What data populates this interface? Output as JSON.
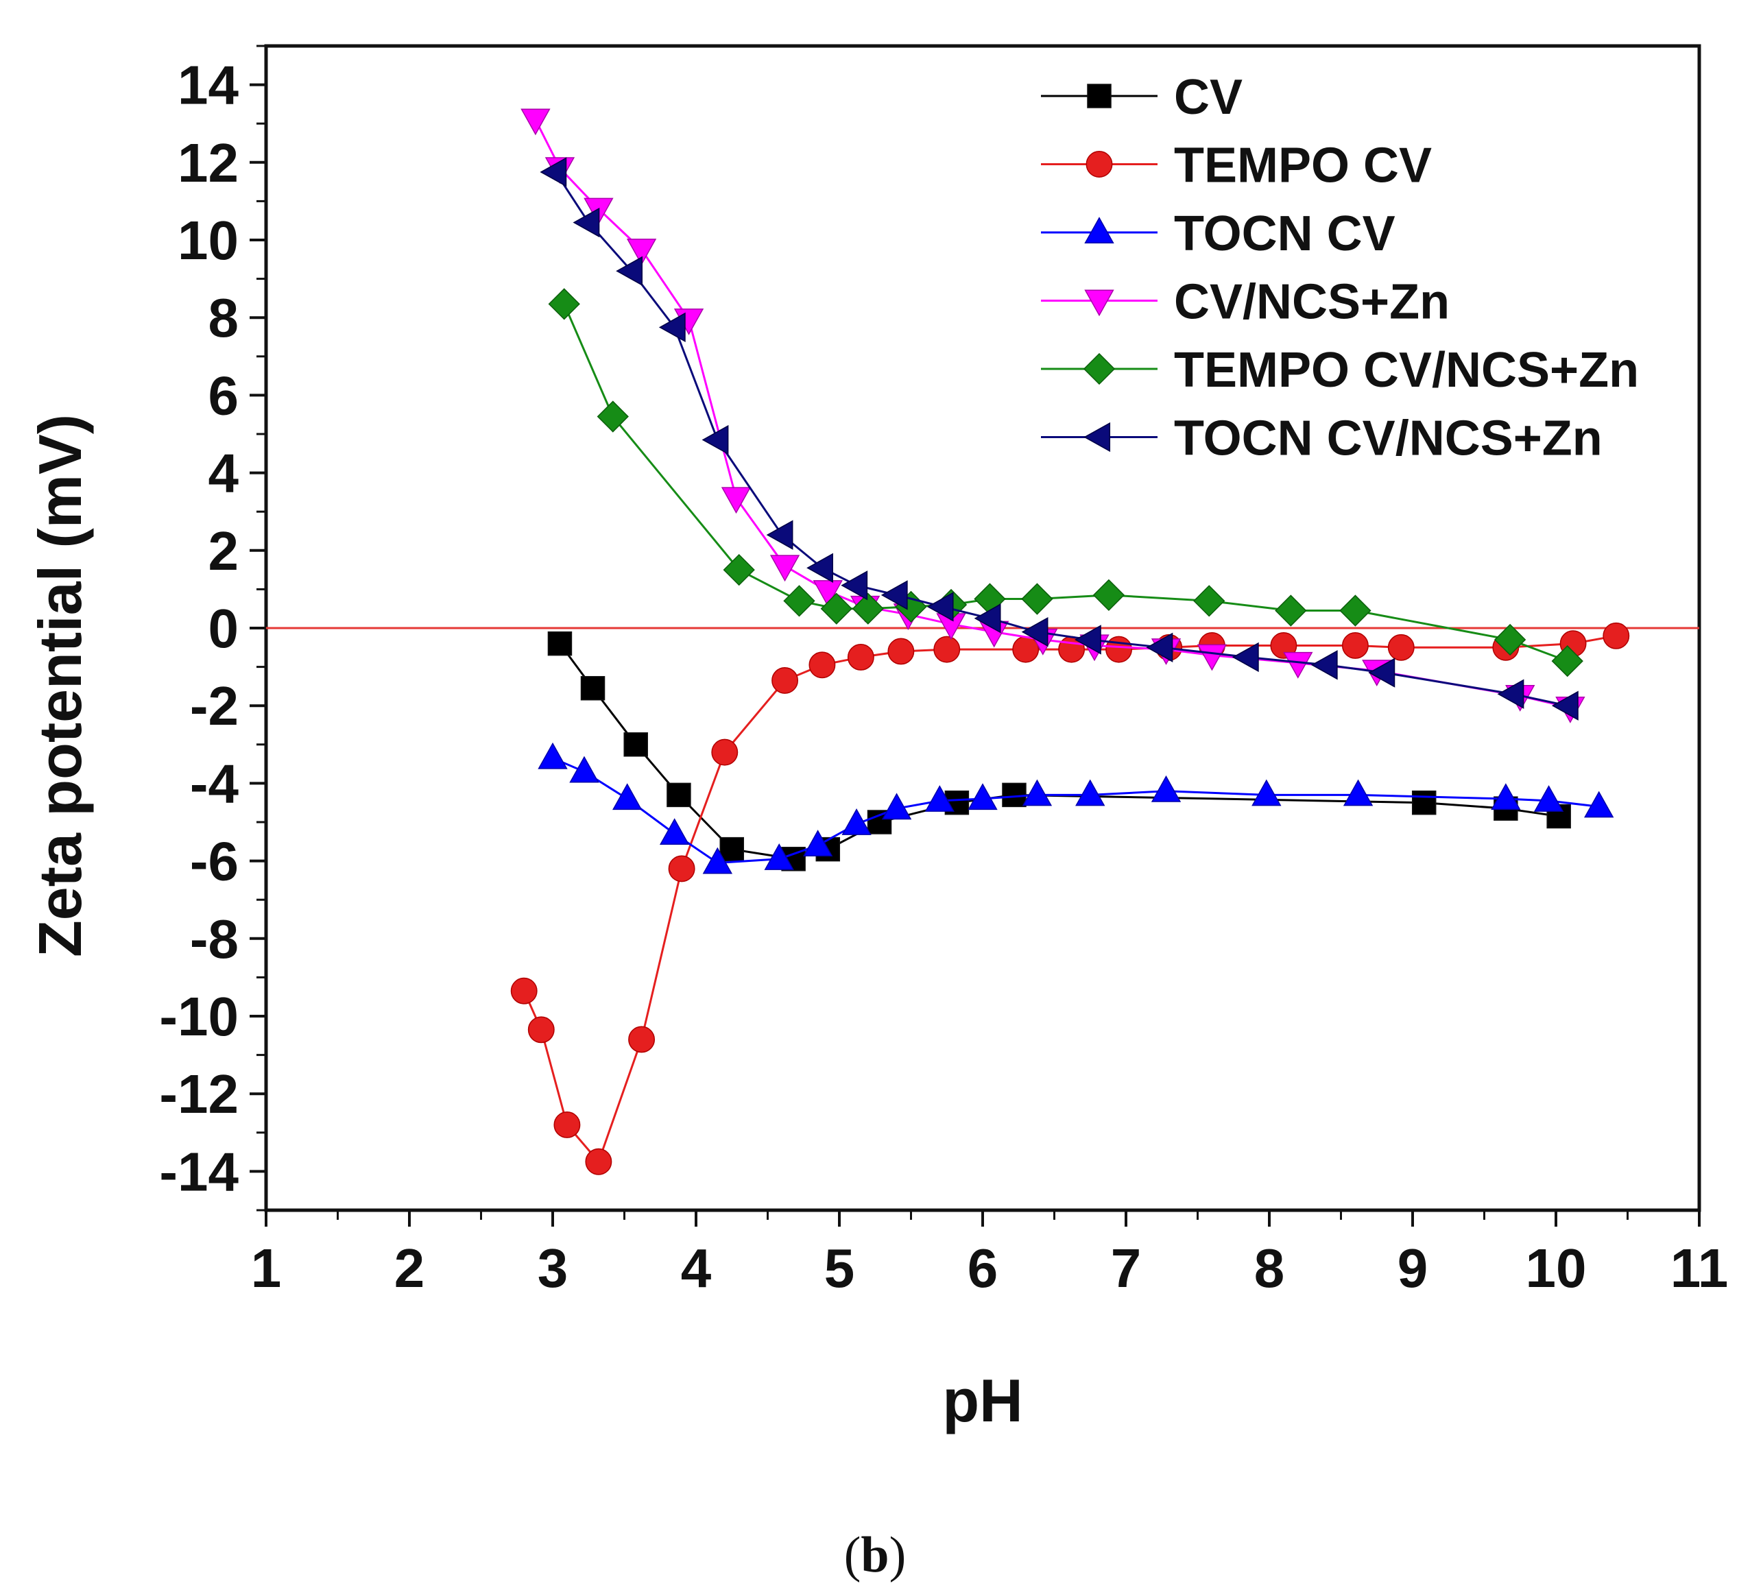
{
  "chart_data": {
    "type": "line",
    "xlabel": "pH",
    "ylabel": "Zeta potential (mV)",
    "xlim": [
      1,
      11
    ],
    "ylim": [
      -15,
      15
    ],
    "x_ticks": [
      1,
      2,
      3,
      4,
      5,
      6,
      7,
      8,
      9,
      10,
      11
    ],
    "y_ticks": [
      -14,
      -12,
      -10,
      -8,
      -6,
      -4,
      -2,
      0,
      2,
      4,
      6,
      8,
      10,
      12,
      14
    ],
    "reference_line": {
      "y": 0,
      "color": "#e53935"
    },
    "legend_position": "top-right",
    "series": [
      {
        "name": "CV",
        "color": "#000000",
        "marker": "square",
        "x": [
          3.05,
          3.28,
          3.58,
          3.88,
          4.25,
          4.68,
          4.92,
          5.28,
          5.82,
          6.22,
          9.08,
          9.65,
          10.02
        ],
        "y": [
          -0.4,
          -1.55,
          -3.0,
          -4.3,
          -5.7,
          -5.95,
          -5.7,
          -5.0,
          -4.5,
          -4.3,
          -4.5,
          -4.65,
          -4.85
        ]
      },
      {
        "name": "TEMPO CV",
        "color": "#e51f1f",
        "marker": "circle",
        "x": [
          2.8,
          2.92,
          3.1,
          3.32,
          3.62,
          3.9,
          4.2,
          4.62,
          4.88,
          5.15,
          5.43,
          5.75,
          6.3,
          6.62,
          6.95,
          7.3,
          7.6,
          8.1,
          8.6,
          8.92,
          9.65,
          10.12,
          10.42
        ],
        "y": [
          -9.35,
          -10.35,
          -12.8,
          -13.75,
          -10.6,
          -6.2,
          -3.2,
          -1.35,
          -0.95,
          -0.75,
          -0.6,
          -0.55,
          -0.55,
          -0.55,
          -0.55,
          -0.5,
          -0.45,
          -0.45,
          -0.45,
          -0.5,
          -0.5,
          -0.4,
          -0.2
        ]
      },
      {
        "name": "TOCN CV",
        "color": "#0000ff",
        "marker": "triangle-up",
        "x": [
          3.0,
          3.22,
          3.52,
          3.85,
          4.15,
          4.58,
          4.85,
          5.12,
          5.4,
          5.7,
          6.0,
          6.38,
          6.75,
          7.28,
          7.98,
          8.62,
          9.65,
          9.95,
          10.3
        ],
        "y": [
          -3.35,
          -3.7,
          -4.4,
          -5.3,
          -6.05,
          -5.95,
          -5.6,
          -5.05,
          -4.65,
          -4.45,
          -4.4,
          -4.3,
          -4.3,
          -4.2,
          -4.3,
          -4.3,
          -4.4,
          -4.45,
          -4.6
        ]
      },
      {
        "name": "CV/NCS+Zn",
        "color": "#ff00ff",
        "marker": "triangle-down",
        "x": [
          2.88,
          3.05,
          3.32,
          3.62,
          3.95,
          4.28,
          4.62,
          4.92,
          5.18,
          5.48,
          5.78,
          6.08,
          6.42,
          6.78,
          7.28,
          7.6,
          8.2,
          8.75,
          9.75,
          10.1
        ],
        "y": [
          13.1,
          11.85,
          10.8,
          9.75,
          7.95,
          3.35,
          1.6,
          0.95,
          0.55,
          0.35,
          0.1,
          -0.1,
          -0.3,
          -0.45,
          -0.55,
          -0.7,
          -0.9,
          -1.1,
          -1.75,
          -2.05
        ]
      },
      {
        "name": "TEMPO CV/NCS+Zn",
        "color": "#168c16",
        "marker": "diamond",
        "x": [
          3.08,
          3.42,
          4.3,
          4.72,
          4.98,
          5.2,
          5.5,
          5.78,
          6.05,
          6.38,
          6.88,
          7.58,
          8.15,
          8.6,
          9.68,
          10.08
        ],
        "y": [
          8.35,
          5.45,
          1.5,
          0.7,
          0.5,
          0.5,
          0.55,
          0.6,
          0.75,
          0.75,
          0.85,
          0.7,
          0.45,
          0.45,
          -0.3,
          -0.85
        ]
      },
      {
        "name": "TOCN CV/NCS+Zn",
        "color": "#0a0a7a",
        "marker": "triangle-left",
        "x": [
          3.02,
          3.25,
          3.55,
          3.85,
          4.15,
          4.6,
          4.88,
          5.12,
          5.4,
          5.72,
          6.05,
          6.38,
          6.75,
          7.25,
          7.85,
          8.4,
          8.8,
          9.7,
          10.08
        ],
        "y": [
          11.75,
          10.45,
          9.2,
          7.75,
          4.85,
          2.4,
          1.55,
          1.1,
          0.85,
          0.55,
          0.25,
          -0.1,
          -0.3,
          -0.5,
          -0.75,
          -0.95,
          -1.15,
          -1.7,
          -2.0
        ]
      }
    ]
  },
  "panel_label": {
    "open": "(",
    "letter": "b",
    "close": ")"
  }
}
